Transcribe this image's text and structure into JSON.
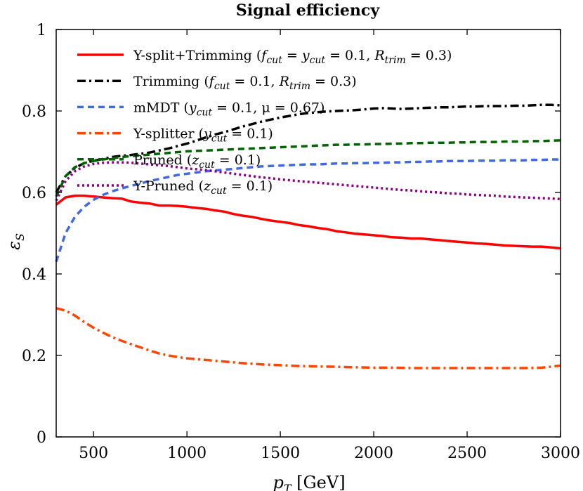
{
  "chart_data": {
    "type": "line",
    "title": "Signal efficiency",
    "xlabel": "p_T [GeV]",
    "ylabel": "ε_S",
    "xlim": [
      300,
      3000
    ],
    "ylim": [
      0,
      1.0
    ],
    "xticks": [
      500,
      1000,
      1500,
      2000,
      2500,
      3000
    ],
    "yticks": [
      0,
      0.2,
      0.4,
      0.6,
      0.8,
      1
    ],
    "xtick_labels": [
      "500",
      "1000",
      "1500",
      "2000",
      "2500",
      "3000"
    ],
    "ytick_labels": [
      "0",
      "0.2",
      "0.4",
      "0.6",
      "0.8",
      "1"
    ],
    "grid": false,
    "legend": "top-left",
    "series": [
      {
        "name": "Y-split+Trimming (f_cut = y_cut = 0.1, R_trim = 0.3)",
        "color": "#ff0000",
        "dash": "solid",
        "x": [
          300,
          350,
          400,
          450,
          500,
          550,
          600,
          650,
          700,
          750,
          800,
          850,
          900,
          950,
          1000,
          1050,
          1100,
          1150,
          1200,
          1250,
          1300,
          1350,
          1400,
          1450,
          1500,
          1550,
          1600,
          1650,
          1700,
          1750,
          1800,
          1850,
          1900,
          1950,
          2000,
          2050,
          2100,
          2150,
          2200,
          2250,
          2300,
          2350,
          2400,
          2450,
          2500,
          2550,
          2600,
          2650,
          2700,
          2750,
          2800,
          2850,
          2900,
          2950,
          3000
        ],
        "y": [
          0.57,
          0.588,
          0.592,
          0.592,
          0.59,
          0.588,
          0.586,
          0.585,
          0.578,
          0.575,
          0.573,
          0.568,
          0.568,
          0.567,
          0.565,
          0.562,
          0.56,
          0.556,
          0.553,
          0.547,
          0.543,
          0.54,
          0.535,
          0.531,
          0.528,
          0.525,
          0.52,
          0.517,
          0.513,
          0.51,
          0.505,
          0.502,
          0.499,
          0.497,
          0.495,
          0.493,
          0.49,
          0.489,
          0.487,
          0.487,
          0.485,
          0.483,
          0.481,
          0.479,
          0.477,
          0.475,
          0.474,
          0.472,
          0.47,
          0.469,
          0.468,
          0.467,
          0.467,
          0.465,
          0.463
        ]
      },
      {
        "name": "Trimming (f_cut = 0.1, R_trim = 0.3)",
        "color": "#000000",
        "dash": "dashdot",
        "x": [
          300,
          350,
          400,
          450,
          500,
          550,
          600,
          650,
          700,
          750,
          800,
          850,
          900,
          950,
          1000,
          1050,
          1100,
          1150,
          1200,
          1250,
          1300,
          1350,
          1400,
          1450,
          1500,
          1550,
          1600,
          1650,
          1700,
          1750,
          1800,
          1850,
          1900,
          1950,
          2000,
          2050,
          2100,
          2150,
          2200,
          2250,
          2300,
          2350,
          2400,
          2450,
          2500,
          2550,
          2600,
          2650,
          2700,
          2750,
          2800,
          2850,
          2900,
          2950,
          3000
        ],
        "y": [
          0.6,
          0.64,
          0.66,
          0.672,
          0.678,
          0.682,
          0.687,
          0.69,
          0.692,
          0.695,
          0.698,
          0.703,
          0.708,
          0.714,
          0.72,
          0.727,
          0.735,
          0.742,
          0.748,
          0.755,
          0.762,
          0.768,
          0.774,
          0.779,
          0.784,
          0.788,
          0.792,
          0.795,
          0.797,
          0.799,
          0.8,
          0.801,
          0.802,
          0.804,
          0.806,
          0.807,
          0.806,
          0.805,
          0.806,
          0.807,
          0.808,
          0.809,
          0.809,
          0.81,
          0.811,
          0.811,
          0.812,
          0.812,
          0.812,
          0.813,
          0.813,
          0.814,
          0.815,
          0.815,
          0.814
        ]
      },
      {
        "name": "mMDT (y_cut = 0.1, μ = 0.67)",
        "color": "#4169e1",
        "dash": "dashed",
        "x": [
          300,
          350,
          400,
          450,
          500,
          550,
          600,
          650,
          700,
          750,
          800,
          850,
          900,
          950,
          1000,
          1050,
          1100,
          1150,
          1200,
          1250,
          1300,
          1350,
          1400,
          1450,
          1500,
          1550,
          1600,
          1650,
          1700,
          1750,
          1800,
          1850,
          1900,
          1950,
          2000,
          2050,
          2100,
          2150,
          2200,
          2250,
          2300,
          2350,
          2400,
          2450,
          2500,
          2550,
          2600,
          2650,
          2700,
          2750,
          2800,
          2850,
          2900,
          2950,
          3000
        ],
        "y": [
          0.43,
          0.5,
          0.54,
          0.565,
          0.582,
          0.594,
          0.603,
          0.61,
          0.616,
          0.622,
          0.628,
          0.633,
          0.638,
          0.643,
          0.646,
          0.649,
          0.652,
          0.654,
          0.656,
          0.658,
          0.66,
          0.662,
          0.664,
          0.665,
          0.666,
          0.667,
          0.668,
          0.669,
          0.669,
          0.67,
          0.671,
          0.671,
          0.672,
          0.672,
          0.673,
          0.673,
          0.674,
          0.674,
          0.675,
          0.675,
          0.676,
          0.676,
          0.677,
          0.677,
          0.677,
          0.678,
          0.678,
          0.678,
          0.679,
          0.679,
          0.679,
          0.68,
          0.68,
          0.681,
          0.681
        ]
      },
      {
        "name": "Y-splitter (y_cut = 0.1)",
        "color": "#ff4500",
        "dash": "dashdot",
        "x": [
          300,
          350,
          400,
          450,
          500,
          550,
          600,
          650,
          700,
          750,
          800,
          850,
          900,
          950,
          1000,
          1100,
          1200,
          1300,
          1400,
          1500,
          1600,
          1700,
          1800,
          1900,
          2000,
          2100,
          2200,
          2300,
          2400,
          2500,
          2600,
          2700,
          2800,
          2900,
          3000
        ],
        "y": [
          0.316,
          0.31,
          0.298,
          0.282,
          0.268,
          0.256,
          0.245,
          0.236,
          0.228,
          0.22,
          0.212,
          0.205,
          0.2,
          0.196,
          0.193,
          0.189,
          0.185,
          0.181,
          0.178,
          0.176,
          0.174,
          0.173,
          0.172,
          0.171,
          0.17,
          0.17,
          0.169,
          0.169,
          0.169,
          0.169,
          0.169,
          0.169,
          0.169,
          0.17,
          0.175
        ]
      },
      {
        "name": "Pruned (z_cut = 0.1)",
        "color": "#006400",
        "dash": "dashed",
        "x": [
          300,
          350,
          400,
          450,
          500,
          550,
          600,
          650,
          700,
          750,
          800,
          850,
          900,
          950,
          1000,
          1050,
          1100,
          1150,
          1200,
          1250,
          1300,
          1350,
          1400,
          1450,
          1500,
          1550,
          1600,
          1650,
          1700,
          1750,
          1800,
          1850,
          1900,
          1950,
          2000,
          2050,
          2100,
          2150,
          2200,
          2250,
          2300,
          2350,
          2400,
          2450,
          2500,
          2550,
          2600,
          2650,
          2700,
          2750,
          2800,
          2850,
          2900,
          2950,
          3000
        ],
        "y": [
          0.59,
          0.64,
          0.662,
          0.672,
          0.677,
          0.681,
          0.684,
          0.687,
          0.689,
          0.691,
          0.693,
          0.695,
          0.697,
          0.699,
          0.701,
          0.702,
          0.703,
          0.704,
          0.705,
          0.706,
          0.707,
          0.708,
          0.709,
          0.71,
          0.711,
          0.712,
          0.713,
          0.714,
          0.715,
          0.716,
          0.717,
          0.717,
          0.718,
          0.718,
          0.719,
          0.719,
          0.72,
          0.72,
          0.721,
          0.721,
          0.722,
          0.722,
          0.722,
          0.723,
          0.723,
          0.724,
          0.724,
          0.724,
          0.725,
          0.725,
          0.725,
          0.726,
          0.726,
          0.727,
          0.728
        ]
      },
      {
        "name": "Y-Pruned (z_cut = 0.1)",
        "color": "#8b008b",
        "dash": "dotted",
        "x": [
          300,
          350,
          400,
          450,
          500,
          550,
          600,
          650,
          700,
          750,
          800,
          850,
          900,
          950,
          1000,
          1050,
          1100,
          1150,
          1200,
          1250,
          1300,
          1350,
          1400,
          1450,
          1500,
          1550,
          1600,
          1650,
          1700,
          1750,
          1800,
          1850,
          1900,
          1950,
          2000,
          2050,
          2100,
          2150,
          2200,
          2250,
          2300,
          2350,
          2400,
          2450,
          2500,
          2550,
          2600,
          2650,
          2700,
          2750,
          2800,
          2850,
          2900,
          2950,
          3000
        ],
        "y": [
          0.58,
          0.628,
          0.652,
          0.664,
          0.67,
          0.673,
          0.674,
          0.674,
          0.673,
          0.671,
          0.669,
          0.667,
          0.665,
          0.662,
          0.659,
          0.657,
          0.655,
          0.652,
          0.649,
          0.646,
          0.643,
          0.64,
          0.637,
          0.635,
          0.632,
          0.63,
          0.628,
          0.626,
          0.624,
          0.622,
          0.62,
          0.618,
          0.616,
          0.614,
          0.612,
          0.61,
          0.608,
          0.606,
          0.605,
          0.603,
          0.601,
          0.6,
          0.598,
          0.597,
          0.595,
          0.594,
          0.593,
          0.592,
          0.59,
          0.589,
          0.588,
          0.587,
          0.586,
          0.585,
          0.584
        ]
      }
    ]
  }
}
